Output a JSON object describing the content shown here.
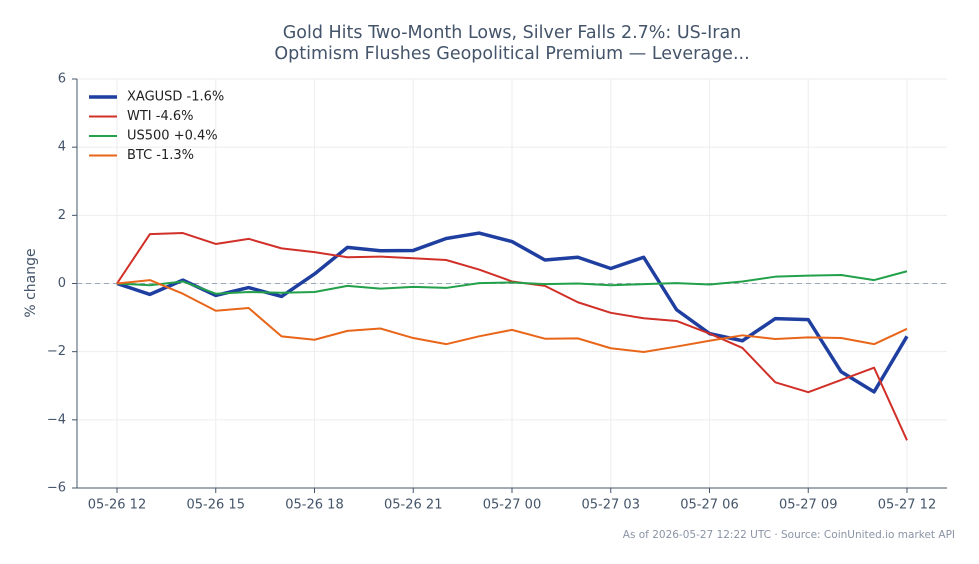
{
  "chart_data": {
    "type": "line",
    "title": [
      "Gold Hits Two-Month Lows, Silver Falls 2.7%: US-Iran",
      "Optimism Flushes Geopolitical Premium — Leverage..."
    ],
    "y_label": "% change",
    "footnote": "As of 2026-05-27 12:22 UTC · Source: CoinUnited.io market API",
    "categories": [
      "05-26 12",
      null,
      null,
      "05-26 15",
      null,
      null,
      "05-26 18",
      null,
      null,
      "05-26 21",
      null,
      null,
      "05-27 00",
      null,
      null,
      "05-27 03",
      null,
      null,
      "05-27 06",
      null,
      null,
      "05-27 09",
      null,
      null,
      "05-27 12"
    ],
    "series": [
      {
        "name": "XAGUSD -1.6%",
        "color": "#1f3fa0",
        "width": 3.5,
        "values": [
          0,
          -0.32,
          0.1,
          -0.35,
          -0.12,
          -0.38,
          0.28,
          1.06,
          0.96,
          0.97,
          1.32,
          1.48,
          1.23,
          0.69,
          0.77,
          0.44,
          0.77,
          -0.77,
          -1.47,
          -1.68,
          -1.03,
          -1.06,
          -2.59,
          -3.18,
          -1.55
        ]
      },
      {
        "name": "WTI -4.6%",
        "color": "#d03028",
        "width": 2,
        "values": [
          0,
          1.45,
          1.48,
          1.16,
          1.31,
          1.03,
          0.92,
          0.77,
          0.79,
          0.74,
          0.69,
          0.41,
          0.06,
          -0.07,
          -0.55,
          -0.86,
          -1.02,
          -1.1,
          -1.47,
          -1.89,
          -2.9,
          -3.19,
          -2.83,
          -2.47,
          -4.6
        ]
      },
      {
        "name": "US500 +0.4%",
        "color": "#22a04a",
        "width": 2,
        "values": [
          0,
          -0.05,
          0.06,
          -0.3,
          -0.25,
          -0.27,
          -0.25,
          -0.07,
          -0.15,
          -0.1,
          -0.13,
          0.01,
          0.03,
          -0.02,
          0.0,
          -0.05,
          -0.02,
          0.01,
          -0.03,
          0.06,
          0.2,
          0.23,
          0.25,
          0.1,
          0.36
        ]
      },
      {
        "name": "BTC -1.3%",
        "color": "#e8661a",
        "width": 2,
        "values": [
          0,
          0.1,
          -0.3,
          -0.8,
          -0.72,
          -1.55,
          -1.65,
          -1.39,
          -1.32,
          -1.6,
          -1.78,
          -1.55,
          -1.36,
          -1.62,
          -1.61,
          -1.9,
          -2.01,
          -1.85,
          -1.68,
          -1.52,
          -1.63,
          -1.58,
          -1.6,
          -1.78,
          -1.33
        ]
      }
    ],
    "ylim": [
      -6,
      6
    ],
    "yticks": [
      {
        "value": -6,
        "label": "−6"
      },
      {
        "value": -4,
        "label": "−4"
      },
      {
        "value": -2,
        "label": "−2"
      },
      0,
      2,
      4,
      6
    ],
    "grid": true,
    "zero_line": true,
    "legend": "upper left"
  }
}
